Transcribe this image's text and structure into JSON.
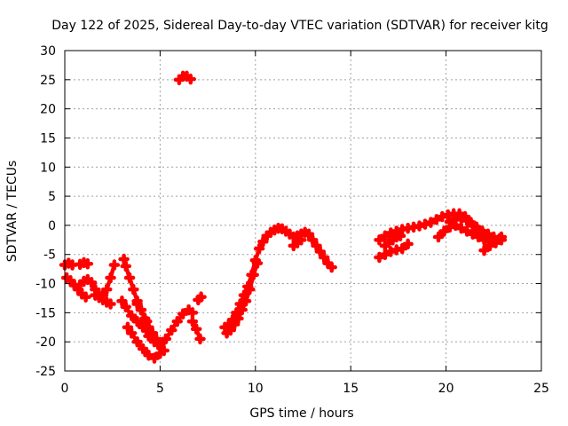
{
  "chart_data": {
    "type": "scatter",
    "title": "Day 122 of 2025, Sidereal Day-to-day VTEC variation (SDTVAR) for receiver kitg",
    "xlabel": "GPS time / hours",
    "ylabel": "SDTVAR / TECUs",
    "xlim": [
      0,
      25
    ],
    "ylim": [
      -25,
      30
    ],
    "xticks": [
      0,
      5,
      10,
      15,
      20,
      25
    ],
    "yticks": [
      -25,
      -20,
      -15,
      -10,
      -5,
      0,
      5,
      10,
      15,
      20,
      25,
      30
    ],
    "grid": true,
    "marker": "plus",
    "color": "#ff0000",
    "series": [
      {
        "name": "seg1",
        "x": [
          0.0,
          0.2,
          0.4
        ],
        "y": [
          -6.8,
          -6.5,
          -6.8
        ]
      },
      {
        "name": "seg2",
        "x": [
          0.8,
          1.0,
          1.2
        ],
        "y": [
          -6.7,
          -6.4,
          -6.6
        ]
      },
      {
        "name": "seg3",
        "x": [
          0.1,
          0.3,
          0.5,
          0.7,
          0.9,
          1.1
        ],
        "y": [
          -9.0,
          -9.5,
          -10.3,
          -11.0,
          -11.8,
          -12.3
        ]
      },
      {
        "name": "seg4",
        "x": [
          0.8,
          1.0,
          1.2
        ],
        "y": [
          -10.2,
          -9.6,
          -9.3
        ]
      },
      {
        "name": "seg5",
        "x": [
          1.4,
          1.6,
          1.8,
          2.0,
          2.2,
          2.4
        ],
        "y": [
          -9.8,
          -11.0,
          -12.0,
          -12.8,
          -13.2,
          -13.5
        ]
      },
      {
        "name": "seg6",
        "x": [
          1.6,
          1.8,
          2.0,
          2.2,
          2.4,
          2.6
        ],
        "y": [
          -12.0,
          -12.4,
          -12.0,
          -11.0,
          -9.0,
          -6.8
        ]
      },
      {
        "name": "seg7",
        "x": [
          3.1,
          3.2,
          3.4,
          3.6,
          3.8,
          4.0,
          4.2,
          4.4,
          4.6,
          4.8
        ],
        "y": [
          -5.8,
          -7.0,
          -9.0,
          -11.0,
          -13.0,
          -14.5,
          -16.0,
          -17.5,
          -18.5,
          -19.5
        ]
      },
      {
        "name": "seg8",
        "x": [
          3.0,
          3.2,
          3.5,
          3.8,
          4.1,
          4.4,
          4.7,
          5.0,
          5.3,
          5.6,
          5.9,
          6.2,
          6.5,
          6.7
        ],
        "y": [
          -13.0,
          -14.0,
          -15.5,
          -16.5,
          -17.5,
          -19.0,
          -20.0,
          -20.5,
          -19.5,
          -18.0,
          -16.5,
          -15.2,
          -14.5,
          -15.0
        ]
      },
      {
        "name": "seg9",
        "x": [
          3.3,
          3.5,
          3.8,
          4.1,
          4.4,
          4.7,
          5.0
        ],
        "y": [
          -17.5,
          -18.5,
          -20.0,
          -21.2,
          -22.3,
          -22.8,
          -22.0
        ]
      },
      {
        "name": "seg10",
        "x": [
          3.8,
          4.0,
          4.3,
          4.6,
          4.9,
          5.2
        ],
        "y": [
          -13.5,
          -14.5,
          -16.5,
          -18.5,
          -20.5,
          -21.5
        ]
      },
      {
        "name": "seg11",
        "x": [
          6.7,
          6.9,
          7.1
        ],
        "y": [
          -16.5,
          -17.8,
          -19.5
        ]
      },
      {
        "name": "seg12",
        "x": [
          7.0,
          7.15
        ],
        "y": [
          -12.8,
          -12.3
        ]
      },
      {
        "name": "seg13",
        "x": [
          6.0,
          6.2,
          6.4,
          6.6
        ],
        "y": [
          25.0,
          25.6,
          25.6,
          25.1
        ]
      },
      {
        "name": "seg14",
        "x": [
          8.4,
          8.6,
          8.8,
          9.0,
          9.2,
          9.4,
          9.6,
          9.8,
          10.0,
          10.2,
          10.4,
          10.6,
          10.8,
          11.0,
          11.2,
          11.4,
          11.6,
          11.8,
          12.0,
          12.2,
          12.4,
          12.6,
          12.8,
          13.0,
          13.2,
          13.4,
          13.6,
          13.8,
          14.0
        ],
        "y": [
          -17.5,
          -17.0,
          -16.2,
          -15.0,
          -13.5,
          -12.0,
          -10.5,
          -8.5,
          -6.0,
          -4.0,
          -2.8,
          -1.8,
          -1.2,
          -0.8,
          -0.5,
          -0.6,
          -1.0,
          -1.5,
          -2.0,
          -1.8,
          -1.5,
          -1.2,
          -1.5,
          -2.5,
          -3.5,
          -4.5,
          -5.5,
          -6.5,
          -7.2
        ]
      },
      {
        "name": "seg15",
        "x": [
          8.5,
          8.7,
          8.9,
          9.1,
          9.3,
          9.5,
          9.7,
          9.9,
          10.1
        ],
        "y": [
          -18.5,
          -18.0,
          -17.0,
          -16.0,
          -14.5,
          -13.0,
          -11.0,
          -8.5,
          -6.5
        ]
      },
      {
        "name": "seg16",
        "x": [
          12.0,
          12.2,
          12.4
        ],
        "y": [
          -3.5,
          -3.0,
          -2.5
        ]
      },
      {
        "name": "seg17",
        "x": [
          16.5,
          16.8,
          17.1,
          17.4,
          17.7,
          18.0,
          18.3,
          18.6,
          18.9,
          19.2,
          19.5,
          19.8,
          20.1,
          20.4,
          20.7,
          21.0,
          21.3,
          21.6,
          21.9,
          22.2,
          22.5,
          22.8
        ],
        "y": [
          -2.5,
          -1.8,
          -1.3,
          -1.0,
          -0.7,
          -0.5,
          -0.3,
          -0.1,
          0.2,
          0.5,
          1.0,
          1.5,
          1.8,
          2.0,
          2.0,
          1.5,
          0.5,
          -0.3,
          -1.0,
          -1.5,
          -2.0,
          -2.3
        ]
      },
      {
        "name": "seg18",
        "x": [
          16.5,
          16.8,
          17.1,
          17.4,
          17.7,
          18.0
        ],
        "y": [
          -5.5,
          -5.0,
          -4.5,
          -4.2,
          -4.0,
          -3.2
        ]
      },
      {
        "name": "seg19",
        "x": [
          16.8,
          17.0,
          17.2,
          17.4,
          17.6
        ],
        "y": [
          -3.5,
          -3.0,
          -2.5,
          -2.0,
          -1.8
        ]
      },
      {
        "name": "seg20",
        "x": [
          19.6,
          19.9,
          20.2,
          20.5,
          20.8,
          21.1,
          21.4,
          21.7,
          22.0,
          22.3,
          22.6,
          22.9
        ],
        "y": [
          -2.0,
          -1.0,
          -0.3,
          0.0,
          -0.5,
          -1.0,
          -1.5,
          -2.0,
          -2.5,
          -2.8,
          -3.0,
          -2.5
        ]
      },
      {
        "name": "seg21",
        "x": [
          20.2,
          20.5,
          20.8,
          21.1,
          21.4,
          21.7,
          22.0,
          22.3
        ],
        "y": [
          0.6,
          1.0,
          1.2,
          0.8,
          0.0,
          -0.8,
          -1.5,
          -2.2
        ]
      },
      {
        "name": "seg22",
        "x": [
          22.0,
          22.3,
          22.6,
          22.9
        ],
        "y": [
          -4.3,
          -3.5,
          -2.8,
          -2.0
        ]
      }
    ]
  }
}
